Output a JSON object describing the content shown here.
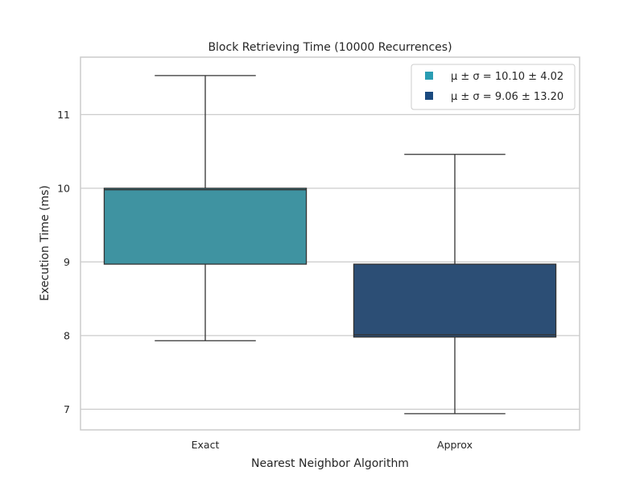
{
  "chart_data": {
    "type": "box",
    "title": "Block Retrieving Time (10000 Recurrences)",
    "xlabel": "Nearest Neighbor Algorithm",
    "ylabel": "Execution Time (ms)",
    "ylim": [
      6.72,
      11.78
    ],
    "yticks": [
      "7",
      "8",
      "9",
      "10",
      "11"
    ],
    "ytick_values": [
      7,
      8,
      9,
      10,
      11
    ],
    "grid": "horizontal",
    "legend_position": "top-right",
    "categories": [
      "Exact",
      "Approx"
    ],
    "boxes": [
      {
        "category": "Exact",
        "whislo": 7.93,
        "q1": 8.97,
        "median": 9.98,
        "q3": 10.0,
        "whishi": 11.53,
        "color": "#3f93a1"
      },
      {
        "category": "Approx",
        "whislo": 6.94,
        "q1": 7.98,
        "median": 8.01,
        "q3": 8.97,
        "whishi": 10.46,
        "color": "#2c4e75"
      }
    ],
    "legend": [
      {
        "text": "μ ± σ = 10.10 ± 4.02",
        "color": "#2a9db3"
      },
      {
        "text": "μ ± σ = 9.06 ± 13.20",
        "color": "#1a4a7f"
      }
    ]
  }
}
